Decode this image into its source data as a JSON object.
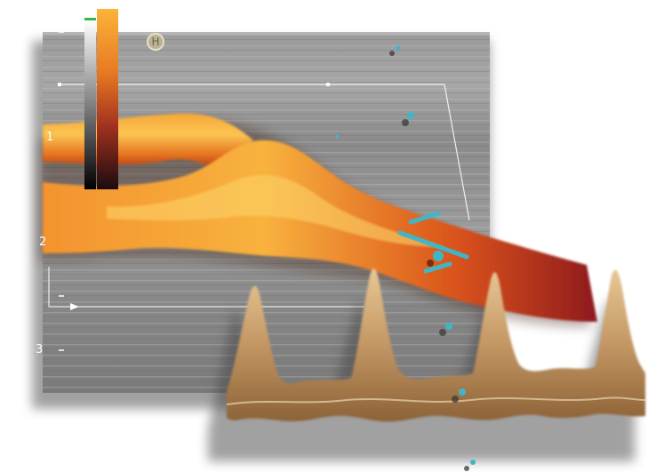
{
  "scale": {
    "marks": [
      "1",
      "2",
      "3"
    ]
  },
  "badge": {
    "label": "H"
  },
  "colors": {
    "background": "#ffffff",
    "ultrasound_gray": "#8c8c8c",
    "flow_hot": "#f9b640",
    "flow_mid": "#e0601a",
    "flow_dark": "#8e1a20",
    "marker_cyan": "#3fb6c8",
    "doppler_tan": "#c8a06a",
    "roi_outline": "#ffffff"
  },
  "icons": [
    "color-scale-bar",
    "grayscale-bar",
    "h-badge-icon",
    "cyan-marker-icon"
  ]
}
